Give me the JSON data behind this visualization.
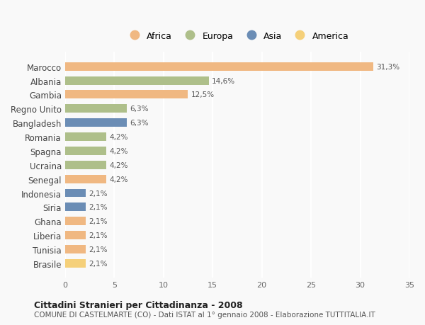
{
  "countries": [
    "Marocco",
    "Albania",
    "Gambia",
    "Regno Unito",
    "Bangladesh",
    "Romania",
    "Spagna",
    "Ucraina",
    "Senegal",
    "Indonesia",
    "Siria",
    "Ghana",
    "Liberia",
    "Tunisia",
    "Brasile"
  ],
  "values": [
    31.3,
    14.6,
    12.5,
    6.3,
    6.3,
    4.2,
    4.2,
    4.2,
    4.2,
    2.1,
    2.1,
    2.1,
    2.1,
    2.1,
    2.1
  ],
  "labels": [
    "31,3%",
    "14,6%",
    "12,5%",
    "6,3%",
    "6,3%",
    "4,2%",
    "4,2%",
    "4,2%",
    "4,2%",
    "2,1%",
    "2,1%",
    "2,1%",
    "2,1%",
    "2,1%",
    "2,1%"
  ],
  "continents": [
    "Africa",
    "Europa",
    "Africa",
    "Europa",
    "Asia",
    "Europa",
    "Europa",
    "Europa",
    "Africa",
    "Asia",
    "Asia",
    "Africa",
    "Africa",
    "Africa",
    "America"
  ],
  "colors": {
    "Africa": "#F0B882",
    "Europa": "#AEBF8A",
    "Asia": "#6B8DB5",
    "America": "#F5D07A"
  },
  "legend_order": [
    "Africa",
    "Europa",
    "Asia",
    "America"
  ],
  "title": "Cittadini Stranieri per Cittadinanza - 2008",
  "subtitle": "COMUNE DI CASTELMARTE (CO) - Dati ISTAT al 1° gennaio 2008 - Elaborazione TUTTITALIA.IT",
  "xlim": [
    0,
    35
  ],
  "xticks": [
    0,
    5,
    10,
    15,
    20,
    25,
    30,
    35
  ],
  "background_color": "#f9f9f9",
  "grid_color": "#ffffff",
  "bar_height": 0.6
}
